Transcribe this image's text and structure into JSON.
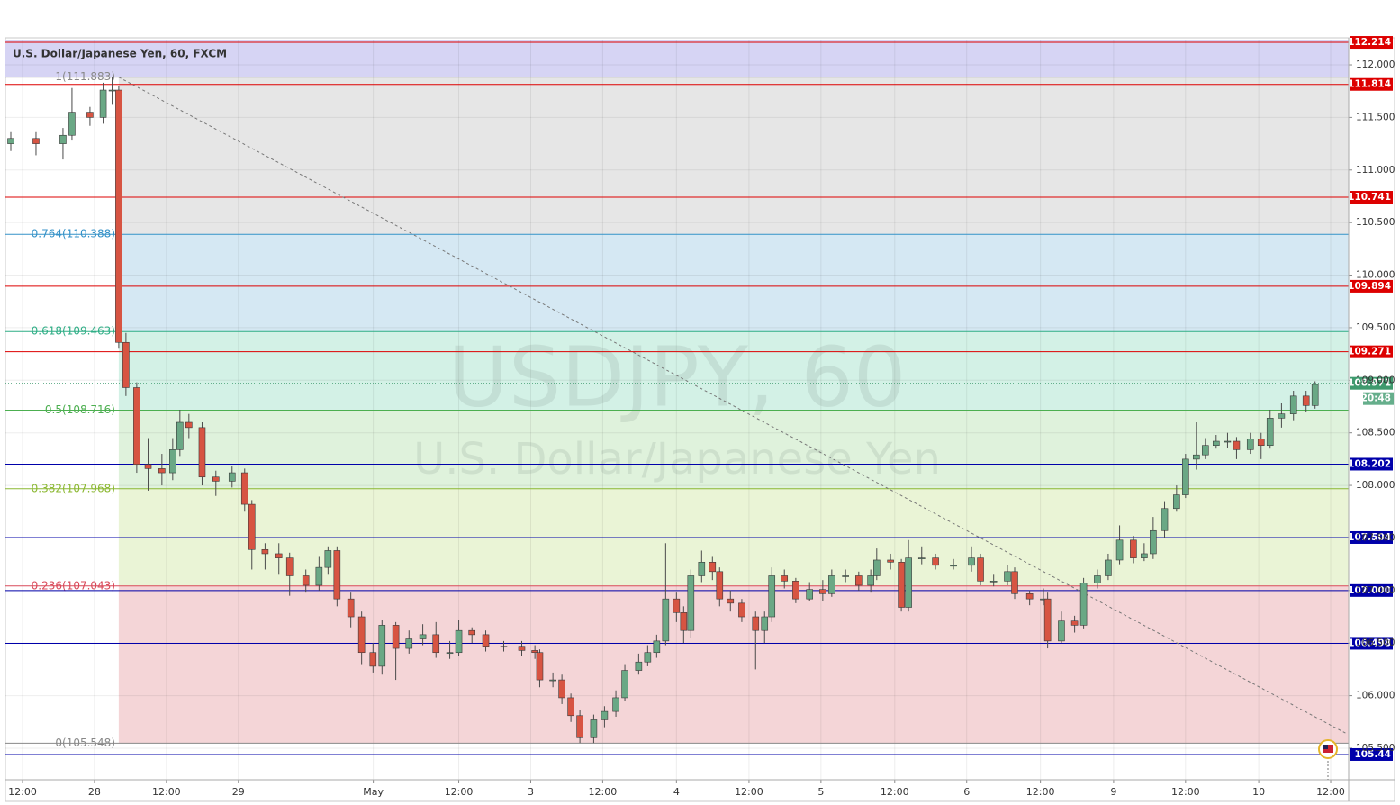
{
  "chart_data": {
    "type": "candlestick",
    "title": "U.S. Dollar/Japanese Yen, 60, FXCM",
    "watermark": "USDJPY, 60",
    "watermark_subtitle": "U.S. Dollar/Japanese Yen",
    "up_color": "#6aa885",
    "down_color": "#d75442",
    "wick_color": "#4a4a4a",
    "x": [
      0.9,
      5.1,
      9.6,
      11.1,
      14.1,
      16.3,
      17.8,
      18.9,
      20.1,
      21.9,
      23.8,
      26.1,
      27.9,
      29.1,
      30.6,
      32.8,
      35.1,
      37.8,
      39.9,
      41.1,
      43.3,
      45.6,
      47.4,
      50.1,
      52.3,
      53.8,
      55.3,
      57.6,
      59.4,
      61.3,
      62.8,
      65.1,
      67.3,
      69.6,
      71.8,
      74.1,
      75.6,
      77.8,
      80.1,
      83.1,
      86.1,
      88.3,
      89.1,
      91.3,
      92.8,
      94.3,
      95.8,
      98.1,
      99.9,
      101.8,
      103.3,
      105.6,
      107.1,
      108.6,
      110.1,
      111.9,
      113.1,
      114.3,
      116.1,
      117.9,
      119.1,
      120.9,
      122.8,
      125.1,
      126.6,
      127.8,
      129.9,
      131.8,
      134.1,
      136.3,
      137.8,
      140.1,
      142.3,
      144.3,
      145.3,
      147.6,
      149.4,
      150.6,
      152.8,
      155.1,
      158.1,
      161.1,
      162.6,
      164.8,
      167.1,
      168.3,
      170.8,
      173.1,
      173.8,
      176.1,
      178.3,
      179.8,
      182.1,
      183.9,
      185.8,
      188.1,
      189.9,
      191.4,
      193.3,
      195.3,
      196.8,
      198.6,
      200.1,
      201.9,
      203.8,
      205.3,
      207.6,
      209.4,
      210.9,
      212.8,
      214.8,
      216.9,
      218.4
    ],
    "open": [
      111.25,
      111.3,
      111.25,
      111.33,
      111.55,
      111.5,
      111.76,
      111.76,
      109.36,
      108.93,
      108.2,
      108.16,
      108.12,
      108.34,
      108.6,
      108.55,
      108.08,
      108.04,
      108.12,
      107.82,
      107.39,
      107.35,
      107.31,
      107.14,
      107.05,
      107.22,
      107.38,
      106.92,
      106.75,
      106.41,
      106.28,
      106.67,
      106.45,
      106.54,
      106.58,
      106.41,
      106.41,
      106.62,
      106.58,
      106.47,
      106.47,
      106.43,
      106.41,
      106.15,
      106.15,
      105.98,
      105.81,
      105.6,
      105.77,
      105.85,
      105.98,
      106.24,
      106.32,
      106.41,
      106.52,
      106.92,
      106.79,
      106.62,
      107.14,
      107.27,
      107.18,
      106.92,
      106.88,
      106.75,
      106.62,
      106.75,
      107.14,
      107.09,
      106.92,
      107.01,
      106.97,
      107.14,
      107.14,
      107.05,
      107.14,
      107.29,
      107.27,
      106.84,
      107.31,
      107.31,
      107.24,
      107.24,
      107.31,
      107.09,
      107.09,
      107.18,
      106.97,
      106.92,
      106.92,
      106.52,
      106.71,
      106.67,
      107.07,
      107.14,
      107.29,
      107.48,
      107.31,
      107.35,
      107.57,
      107.78,
      107.91,
      108.25,
      108.29,
      108.38,
      108.42,
      108.42,
      108.34,
      108.44,
      108.38,
      108.64,
      108.68,
      108.85,
      108.76
    ],
    "high": [
      111.36,
      111.36,
      111.4,
      111.78,
      111.6,
      111.83,
      111.88,
      111.8,
      109.45,
      108.98,
      108.45,
      108.3,
      108.45,
      108.72,
      108.68,
      108.6,
      108.14,
      108.18,
      108.16,
      107.86,
      107.45,
      107.45,
      107.36,
      107.2,
      107.32,
      107.42,
      107.42,
      106.98,
      106.8,
      106.5,
      106.72,
      106.7,
      106.62,
      106.68,
      106.7,
      106.52,
      106.72,
      106.65,
      106.62,
      106.52,
      106.52,
      106.48,
      106.44,
      106.22,
      106.2,
      106.02,
      105.86,
      105.82,
      105.9,
      106.05,
      106.3,
      106.4,
      106.48,
      106.58,
      107.45,
      106.98,
      106.85,
      107.2,
      107.38,
      107.32,
      107.22,
      107.0,
      106.92,
      106.8,
      106.8,
      107.22,
      107.2,
      107.12,
      107.08,
      107.1,
      107.2,
      107.2,
      107.18,
      107.2,
      107.4,
      107.35,
      107.3,
      107.48,
      107.42,
      107.35,
      107.3,
      107.42,
      107.35,
      107.15,
      107.24,
      107.22,
      107.0,
      107.02,
      106.98,
      106.8,
      106.76,
      107.12,
      107.2,
      107.35,
      107.62,
      107.52,
      107.45,
      107.7,
      107.85,
      108.0,
      108.3,
      108.6,
      108.45,
      108.48,
      108.5,
      108.46,
      108.5,
      108.5,
      108.72,
      108.78,
      108.9,
      108.9,
      108.99
    ],
    "low": [
      111.18,
      111.14,
      111.1,
      111.28,
      111.42,
      111.44,
      111.62,
      109.3,
      108.85,
      108.12,
      107.95,
      108.0,
      108.05,
      108.28,
      108.45,
      108.0,
      107.9,
      107.98,
      107.75,
      107.2,
      107.2,
      107.15,
      106.95,
      106.98,
      107.0,
      107.15,
      106.85,
      106.65,
      106.3,
      106.22,
      106.2,
      106.15,
      106.4,
      106.48,
      106.36,
      106.35,
      106.38,
      106.5,
      106.42,
      106.42,
      106.38,
      106.35,
      106.08,
      106.08,
      105.92,
      105.75,
      105.55,
      105.55,
      105.7,
      105.8,
      105.95,
      106.2,
      106.28,
      106.36,
      106.48,
      106.7,
      106.5,
      106.55,
      107.08,
      107.1,
      106.85,
      106.8,
      106.7,
      106.25,
      106.5,
      106.7,
      107.02,
      106.88,
      106.9,
      106.9,
      106.94,
      107.08,
      107.0,
      106.98,
      107.1,
      107.2,
      106.8,
      106.8,
      107.25,
      107.2,
      107.2,
      107.18,
      107.05,
      107.04,
      107.05,
      106.92,
      106.86,
      106.86,
      106.45,
      106.5,
      106.6,
      106.64,
      107.02,
      107.1,
      107.25,
      107.26,
      107.28,
      107.3,
      107.5,
      107.75,
      107.88,
      108.15,
      108.25,
      108.35,
      108.36,
      108.25,
      108.3,
      108.25,
      108.35,
      108.55,
      108.62,
      108.7,
      108.73
    ],
    "close": [
      111.3,
      111.25,
      111.33,
      111.55,
      111.5,
      111.76,
      111.76,
      109.36,
      108.93,
      108.2,
      108.16,
      108.12,
      108.34,
      108.6,
      108.55,
      108.08,
      108.04,
      108.12,
      107.82,
      107.39,
      107.35,
      107.31,
      107.14,
      107.05,
      107.22,
      107.38,
      106.92,
      106.75,
      106.41,
      106.28,
      106.67,
      106.45,
      106.54,
      106.58,
      106.41,
      106.41,
      106.62,
      106.58,
      106.47,
      106.47,
      106.43,
      106.41,
      106.15,
      106.15,
      105.98,
      105.81,
      105.6,
      105.77,
      105.85,
      105.98,
      106.24,
      106.32,
      106.41,
      106.52,
      106.92,
      106.79,
      106.62,
      107.14,
      107.27,
      107.18,
      106.92,
      106.88,
      106.75,
      106.62,
      106.75,
      107.14,
      107.09,
      106.92,
      107.01,
      106.97,
      107.14,
      107.14,
      107.05,
      107.14,
      107.29,
      107.27,
      106.84,
      107.31,
      107.31,
      107.24,
      107.24,
      107.31,
      107.09,
      107.09,
      107.18,
      106.97,
      106.92,
      106.92,
      106.52,
      106.71,
      106.67,
      107.07,
      107.14,
      107.29,
      107.48,
      107.31,
      107.35,
      107.57,
      107.78,
      107.91,
      108.25,
      108.29,
      108.38,
      108.42,
      108.42,
      108.34,
      108.44,
      108.38,
      108.64,
      108.68,
      108.85,
      108.76,
      108.96
    ],
    "xlim": [
      0,
      224
    ],
    "xticks": [
      {
        "value": 2.85,
        "label": "12:00"
      },
      {
        "value": 14.85,
        "label": "28"
      },
      {
        "value": 26.85,
        "label": "12:00"
      },
      {
        "value": 38.85,
        "label": "29"
      },
      {
        "value": 61.35,
        "label": "May"
      },
      {
        "value": 75.6,
        "label": "12:00"
      },
      {
        "value": 87.6,
        "label": "3"
      },
      {
        "value": 99.6,
        "label": "12:00"
      },
      {
        "value": 111.9,
        "label": "4"
      },
      {
        "value": 124,
        "label": "12:00"
      },
      {
        "value": 136,
        "label": "5"
      },
      {
        "value": 148.3,
        "label": "12:00"
      },
      {
        "value": 160.3,
        "label": "6"
      },
      {
        "value": 172.6,
        "label": "12:00"
      },
      {
        "value": 184.8,
        "label": "9"
      },
      {
        "value": 196.8,
        "label": "12:00"
      },
      {
        "value": 209,
        "label": "10"
      },
      {
        "value": 221,
        "label": "12:00"
      }
    ],
    "ylim": [
      105.2,
      112.24
    ],
    "yticks": [
      {
        "value": 105.5,
        "label": "105.500"
      },
      {
        "value": 106,
        "label": "106.000"
      },
      {
        "value": 106.5,
        "label": "106.500"
      },
      {
        "value": 107,
        "label": "107.000"
      },
      {
        "value": 107.5,
        "label": "107.500"
      },
      {
        "value": 108,
        "label": "108.000"
      },
      {
        "value": 108.5,
        "label": "108.500"
      },
      {
        "value": 109,
        "label": "109.000"
      },
      {
        "value": 109.5,
        "label": "109.500"
      },
      {
        "value": 110,
        "label": "110.000"
      },
      {
        "value": 110.5,
        "label": "110.500"
      },
      {
        "value": 111,
        "label": "111.000"
      },
      {
        "value": 111.5,
        "label": "111.500"
      },
      {
        "value": 112,
        "label": "112.000"
      }
    ],
    "grid": true,
    "horizontal_lines": [
      {
        "value": 112.214,
        "color": "#dd0000"
      },
      {
        "value": 111.814,
        "color": "#dd0000"
      },
      {
        "value": 110.741,
        "color": "#dd0000"
      },
      {
        "value": 109.894,
        "color": "#dd0000"
      },
      {
        "value": 109.271,
        "color": "#dd0000"
      },
      {
        "value": 108.202,
        "color": "#0000aa"
      },
      {
        "value": 107.504,
        "color": "#0000aa"
      },
      {
        "value": 107,
        "label": "107.000",
        "color": "#0000aa"
      },
      {
        "value": 106.498,
        "color": "#0000aa"
      },
      {
        "value": 105.44,
        "color": "#0000aa"
      }
    ],
    "fibonacci": {
      "levels": [
        {
          "value": 111.883,
          "label": "1(111.883)",
          "color": "#888888"
        },
        {
          "value": 110.388,
          "label": "0.764(110.388)",
          "color": "#3592c8"
        },
        {
          "value": 109.463,
          "label": "0.618(109.463)",
          "color": "#2fae86"
        },
        {
          "value": 108.716,
          "label": "0.5(108.716)",
          "color": "#4caf50"
        },
        {
          "value": 107.968,
          "label": "0.382(107.968)",
          "color": "#8cb833"
        },
        {
          "value": 107.043,
          "label": "0.236(107.043)",
          "color": "#d94a5a"
        },
        {
          "value": 105.548,
          "label": "0(105.548)",
          "color": "#888888"
        }
      ],
      "fills": [
        "#e6e6e6",
        "#d5e8f3",
        "#d3f1e6",
        "#dff2dc",
        "#eaf4d6",
        "#f4d5d7"
      ]
    },
    "trendline": {
      "x": [
        18.9,
        223.6
      ],
      "y": [
        111.883,
        105.64
      ]
    },
    "last_price": {
      "value": 108.971,
      "countdown": "20:48",
      "color": "#3f9a6e"
    }
  }
}
